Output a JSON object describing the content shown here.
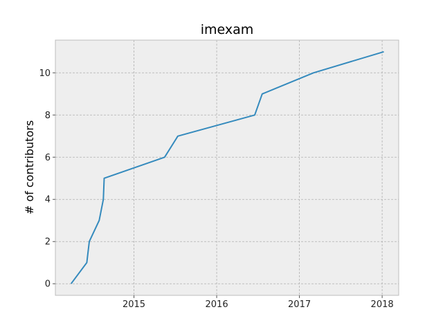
{
  "chart_data": {
    "type": "line",
    "title": "imexam",
    "xlabel": "",
    "ylabel": "# of contributors",
    "x_tick_labels": [
      "2015",
      "2016",
      "2017",
      "2018"
    ],
    "x_ticks": [
      2015,
      2016,
      2017,
      2018
    ],
    "y_tick_labels": [
      "0",
      "2",
      "4",
      "6",
      "8",
      "10"
    ],
    "y_ticks": [
      0,
      2,
      4,
      6,
      8,
      10
    ],
    "xlim": [
      2014.05,
      2018.2
    ],
    "ylim": [
      -0.55,
      11.55
    ],
    "grid": true,
    "colors": {
      "line": "#348abd",
      "plot_background": "#eeeeee",
      "grid": "#b0b0b0",
      "frame": "#bcbcbc"
    },
    "series": [
      {
        "x": [
          2014.24,
          2014.43,
          2014.46,
          2014.58,
          2014.63,
          2014.64,
          2015.37,
          2015.53,
          2016.46,
          2016.55,
          2017.17,
          2018.02
        ],
        "y": [
          0,
          1,
          2,
          3,
          4,
          5,
          6,
          7,
          8,
          9,
          10,
          11
        ]
      }
    ]
  }
}
